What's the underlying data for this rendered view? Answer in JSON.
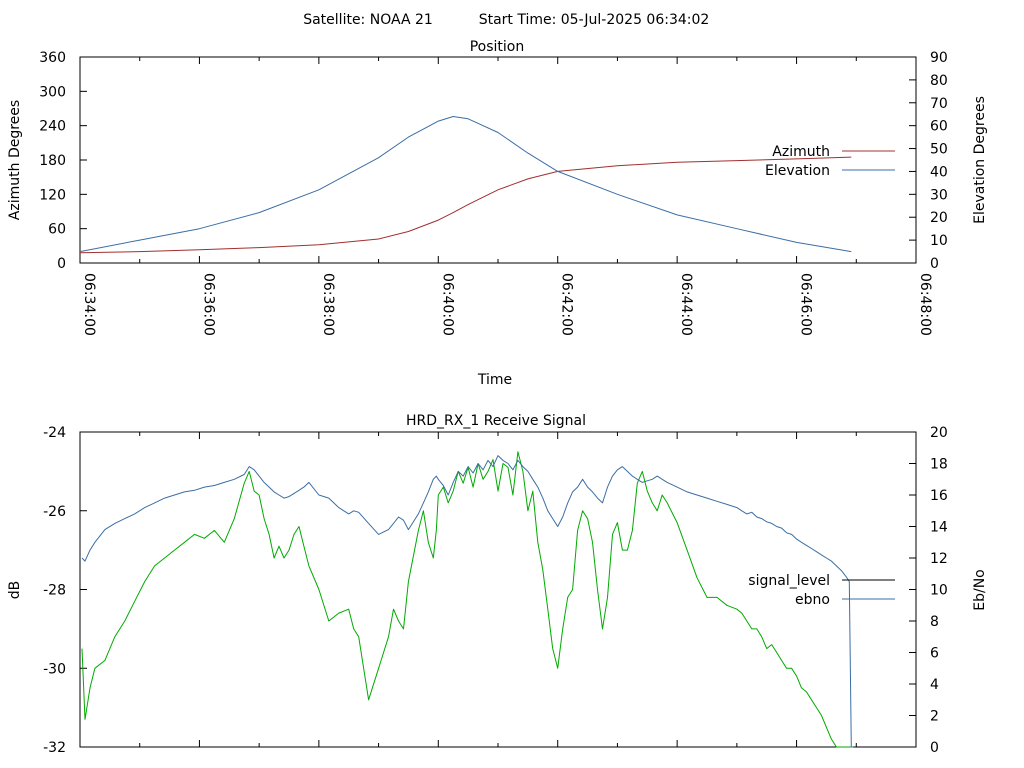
{
  "header": {
    "satellite_label": "Satellite: NOAA 21",
    "start_time_label": "Start Time: 05-Jul-2025 06:34:02"
  },
  "chart_data": [
    {
      "type": "line",
      "title": "Position",
      "xlabel": "Time",
      "ylabel": "Azimuth Degrees",
      "y2label": "Elevation Degrees",
      "x_ticks": [
        "06:34:00",
        "06:36:00",
        "06:38:00",
        "06:40:00",
        "06:42:00",
        "06:44:00",
        "06:46:00",
        "06:48:00"
      ],
      "xlim_seconds": [
        0,
        840
      ],
      "ylim": [
        0,
        360
      ],
      "y_ticks": [
        "0",
        "60",
        "120",
        "180",
        "240",
        "300",
        "360"
      ],
      "y2lim": [
        0,
        90
      ],
      "y2_ticks": [
        "0",
        "10",
        "20",
        "30",
        "40",
        "50",
        "60",
        "70",
        "80",
        "90"
      ],
      "legend_position": "right",
      "series": [
        {
          "name": "Azimuth",
          "axis": "y",
          "color": "#a0302e",
          "x": [
            0,
            60,
            120,
            180,
            240,
            300,
            330,
            360,
            375,
            390,
            420,
            450,
            480,
            540,
            600,
            660,
            720,
            775
          ],
          "y": [
            18,
            20,
            23,
            27,
            32,
            42,
            55,
            75,
            88,
            102,
            128,
            147,
            160,
            170,
            176,
            179,
            182,
            185
          ]
        },
        {
          "name": "Elevation",
          "axis": "y2",
          "color": "#3b6ea5",
          "x": [
            0,
            60,
            120,
            180,
            240,
            300,
            330,
            360,
            375,
            390,
            420,
            450,
            480,
            540,
            600,
            660,
            720,
            775
          ],
          "y": [
            5,
            10,
            15,
            22,
            32,
            46,
            55,
            62,
            64,
            63,
            57,
            48,
            40,
            30,
            21,
            15,
            9,
            5
          ]
        }
      ]
    },
    {
      "type": "line",
      "title": "HRD_RX_1 Receive Signal",
      "xlabel": "",
      "ylabel": "dB",
      "y2label": "Eb/No",
      "xlim_seconds": [
        0,
        840
      ],
      "ylim": [
        -32,
        -24
      ],
      "y_ticks": [
        "-24",
        "-26",
        "-28",
        "-30",
        "-32"
      ],
      "y2lim": [
        0,
        20
      ],
      "y2_ticks": [
        "0",
        "2",
        "4",
        "6",
        "8",
        "10",
        "12",
        "14",
        "16",
        "18",
        "20"
      ],
      "legend_position": "right",
      "series": [
        {
          "name": "signal_level",
          "axis": "y",
          "color": "#000000",
          "plot_color": "#00aa00",
          "x": [
            2,
            5,
            10,
            15,
            25,
            35,
            45,
            55,
            65,
            75,
            85,
            95,
            105,
            115,
            125,
            135,
            145,
            155,
            165,
            170,
            175,
            180,
            185,
            190,
            195,
            200,
            205,
            210,
            215,
            220,
            225,
            230,
            240,
            250,
            260,
            270,
            275,
            280,
            290,
            300,
            310,
            315,
            320,
            325,
            330,
            340,
            345,
            350,
            355,
            358,
            360,
            365,
            370,
            375,
            380,
            385,
            390,
            395,
            400,
            405,
            410,
            415,
            420,
            425,
            430,
            435,
            440,
            445,
            450,
            455,
            460,
            465,
            470,
            475,
            480,
            485,
            490,
            495,
            500,
            505,
            510,
            515,
            520,
            525,
            530,
            535,
            540,
            545,
            550,
            555,
            560,
            565,
            570,
            575,
            580,
            585,
            590,
            600,
            610,
            620,
            630,
            640,
            650,
            660,
            665,
            670,
            675,
            680,
            685,
            690,
            695,
            700,
            705,
            710,
            715,
            720,
            725,
            730,
            735,
            740,
            745,
            750,
            755,
            760,
            765,
            770,
            773,
            775,
            777
          ],
          "y": [
            -29.5,
            -31.3,
            -30.5,
            -30.0,
            -29.8,
            -29.2,
            -28.8,
            -28.3,
            -27.8,
            -27.4,
            -27.2,
            -27.0,
            -26.8,
            -26.6,
            -26.7,
            -26.5,
            -26.8,
            -26.2,
            -25.3,
            -25.0,
            -25.5,
            -25.6,
            -26.2,
            -26.6,
            -27.2,
            -26.9,
            -27.2,
            -27.0,
            -26.6,
            -26.4,
            -26.9,
            -27.4,
            -28.0,
            -28.8,
            -28.6,
            -28.5,
            -29.0,
            -29.2,
            -30.8,
            -30.0,
            -29.2,
            -28.5,
            -28.8,
            -29.0,
            -27.8,
            -26.5,
            -26.0,
            -26.8,
            -27.2,
            -26.5,
            -25.6,
            -25.4,
            -25.8,
            -25.5,
            -25.0,
            -25.3,
            -24.9,
            -25.4,
            -24.8,
            -25.2,
            -25.0,
            -24.7,
            -25.5,
            -24.8,
            -24.9,
            -25.6,
            -24.5,
            -25.0,
            -26.0,
            -25.5,
            -26.8,
            -27.5,
            -28.5,
            -29.5,
            -30.0,
            -29.0,
            -28.2,
            -28.0,
            -26.5,
            -26.0,
            -26.2,
            -26.8,
            -28.0,
            -29.0,
            -28.2,
            -26.6,
            -26.3,
            -27.0,
            -27.0,
            -26.5,
            -25.3,
            -25.0,
            -25.5,
            -25.8,
            -26.0,
            -25.6,
            -25.8,
            -26.3,
            -27.0,
            -27.7,
            -28.2,
            -28.2,
            -28.4,
            -28.5,
            -28.6,
            -28.8,
            -29.0,
            -29.0,
            -29.2,
            -29.5,
            -29.4,
            -29.6,
            -29.8,
            -30.0,
            -30.0,
            -30.2,
            -30.5,
            -30.6,
            -30.8,
            -31.0,
            -31.2,
            -31.5,
            -31.8,
            -32.0,
            -32.0,
            -32.0,
            -32.0,
            -32.0,
            -32.0
          ]
        },
        {
          "name": "ebno",
          "axis": "y2",
          "color": "#3b6ea5",
          "x": [
            2,
            5,
            10,
            15,
            25,
            35,
            45,
            55,
            65,
            75,
            85,
            95,
            105,
            115,
            125,
            135,
            145,
            155,
            165,
            170,
            175,
            180,
            185,
            190,
            195,
            200,
            205,
            210,
            215,
            220,
            225,
            230,
            240,
            250,
            260,
            270,
            275,
            280,
            290,
            300,
            310,
            315,
            320,
            325,
            330,
            340,
            345,
            350,
            355,
            358,
            360,
            365,
            370,
            375,
            380,
            385,
            390,
            395,
            400,
            405,
            410,
            415,
            420,
            425,
            430,
            435,
            440,
            445,
            450,
            455,
            460,
            465,
            470,
            475,
            480,
            485,
            490,
            495,
            500,
            505,
            510,
            515,
            520,
            525,
            530,
            535,
            540,
            545,
            550,
            555,
            560,
            565,
            570,
            575,
            580,
            585,
            590,
            600,
            610,
            620,
            630,
            640,
            650,
            660,
            665,
            670,
            675,
            680,
            685,
            690,
            695,
            700,
            705,
            710,
            715,
            720,
            725,
            730,
            735,
            740,
            745,
            750,
            755,
            760,
            765,
            770,
            773,
            775,
            777
          ],
          "y": [
            12.0,
            11.8,
            12.5,
            13.0,
            13.8,
            14.2,
            14.5,
            14.8,
            15.2,
            15.5,
            15.8,
            16.0,
            16.2,
            16.3,
            16.5,
            16.6,
            16.8,
            17.0,
            17.3,
            17.8,
            17.6,
            17.2,
            16.8,
            16.5,
            16.2,
            16.0,
            15.8,
            15.9,
            16.1,
            16.3,
            16.5,
            16.8,
            16.0,
            15.8,
            15.2,
            14.8,
            15.0,
            14.9,
            14.2,
            13.5,
            13.8,
            14.2,
            14.6,
            14.4,
            13.8,
            14.8,
            15.5,
            16.2,
            17.0,
            17.2,
            17.0,
            16.6,
            16.0,
            16.8,
            17.5,
            17.2,
            17.8,
            17.4,
            18.0,
            17.6,
            18.2,
            17.8,
            18.5,
            18.2,
            18.0,
            17.6,
            18.2,
            17.8,
            17.5,
            17.0,
            16.5,
            15.8,
            15.0,
            14.5,
            14.0,
            14.6,
            15.5,
            16.2,
            16.5,
            17.0,
            16.5,
            16.2,
            15.8,
            15.5,
            16.5,
            17.2,
            17.6,
            17.8,
            17.5,
            17.2,
            17.0,
            16.8,
            16.9,
            17.0,
            17.2,
            17.0,
            16.8,
            16.5,
            16.2,
            16.0,
            15.8,
            15.6,
            15.4,
            15.2,
            15.0,
            14.8,
            14.9,
            14.6,
            14.5,
            14.3,
            14.2,
            14.0,
            13.9,
            13.6,
            13.5,
            13.2,
            13.0,
            12.8,
            12.6,
            12.4,
            12.2,
            12.0,
            11.8,
            11.5,
            11.2,
            10.8,
            10.5,
            0.0,
            0.0
          ]
        }
      ]
    }
  ]
}
